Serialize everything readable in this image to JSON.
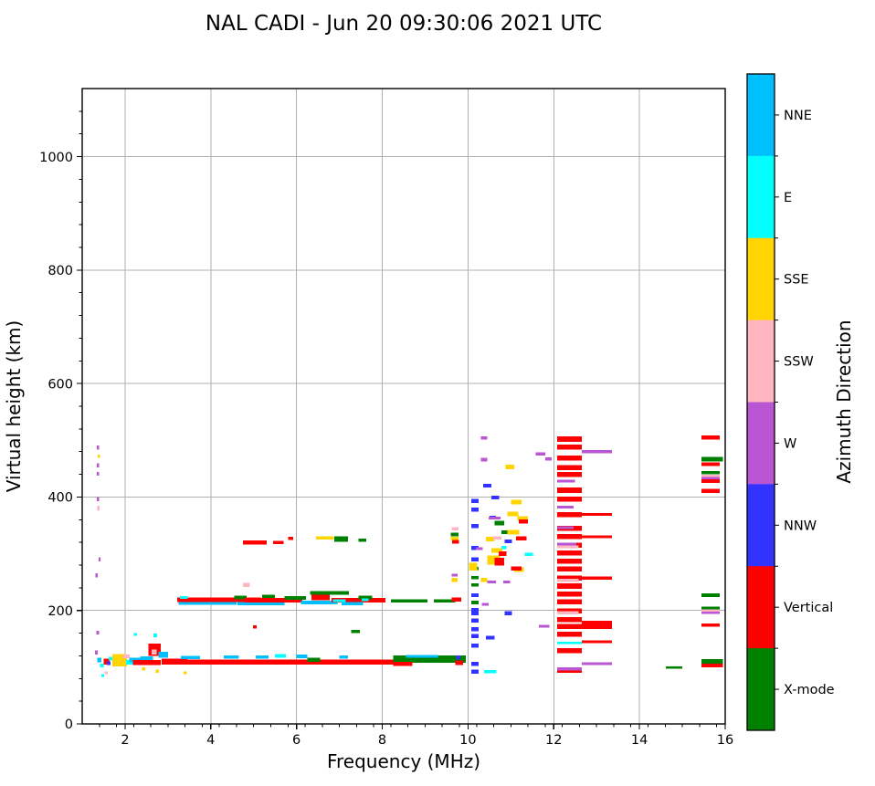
{
  "title": "NAL CADI - Jun 20 09:30:06 2021 UTC",
  "axes": {
    "xlabel": "Frequency (MHz)",
    "ylabel": "Virtual height (km)",
    "xlim": [
      1,
      16
    ],
    "ylim": [
      0,
      1120
    ],
    "xticks": [
      2,
      4,
      6,
      8,
      10,
      12,
      14,
      16
    ],
    "yticks": [
      0,
      200,
      400,
      600,
      800,
      1000
    ],
    "x_minor_step": 0.4,
    "y_minor_step": 40,
    "grid_color": "#b0b0b0",
    "spine_color": "#000000"
  },
  "colorbar": {
    "label": "Azimuth Direction",
    "categories_top_to_bottom": [
      {
        "key": "NNE",
        "label": "NNE",
        "color": "#00BFFF"
      },
      {
        "key": "E",
        "label": "E",
        "color": "#00FFFF"
      },
      {
        "key": "SSE",
        "label": "SSE",
        "color": "#FFD400"
      },
      {
        "key": "SSW",
        "label": "SSW",
        "color": "#FFB6C1"
      },
      {
        "key": "W",
        "label": "W",
        "color": "#BA55D3"
      },
      {
        "key": "NNW",
        "label": "NNW",
        "color": "#3333FF"
      },
      {
        "key": "V",
        "label": "Vertical",
        "color": "#FF0000"
      },
      {
        "key": "X",
        "label": "X-mode",
        "color": "#008000"
      }
    ]
  },
  "chart_data": {
    "type": "scatter",
    "title": "NAL CADI - Jun 20 09:30:06 2021 UTC",
    "xlabel": "Frequency (MHz)",
    "ylabel": "Virtual height (km)",
    "x_units": "MHz",
    "y_units": "km",
    "xlim": [
      1,
      16
    ],
    "ylim": [
      0,
      1120
    ],
    "grid": true,
    "legend_position": "right-colorbar",
    "point_format": [
      "freq_start_MHz",
      "freq_width_MHz",
      "height_center_km",
      "height_thickness_km",
      "azimuth_category"
    ],
    "points": [
      [
        1.3,
        0.06,
        126,
        7,
        "W"
      ],
      [
        1.33,
        0.06,
        161,
        7,
        "W"
      ],
      [
        1.35,
        0.1,
        113,
        8,
        "NNE"
      ],
      [
        1.42,
        0.08,
        103,
        6,
        "E"
      ],
      [
        1.45,
        0.06,
        85,
        5,
        "E"
      ],
      [
        1.52,
        0.08,
        90,
        5,
        "SSW"
      ],
      [
        1.5,
        0.14,
        110,
        10,
        "V"
      ],
      [
        1.58,
        0.08,
        107,
        7,
        "NNW"
      ],
      [
        1.62,
        0.1,
        115,
        6,
        "E"
      ],
      [
        1.7,
        0.34,
        112,
        22,
        "SSE"
      ],
      [
        1.95,
        0.16,
        119,
        7,
        "SSW"
      ],
      [
        2.02,
        0.2,
        109,
        8,
        "E"
      ],
      [
        2.1,
        0.25,
        113,
        8,
        "NNE"
      ],
      [
        2.18,
        0.65,
        108,
        9,
        "V"
      ],
      [
        2.35,
        0.3,
        116,
        6,
        "NNE"
      ],
      [
        2.4,
        0.07,
        97,
        5,
        "SSE"
      ],
      [
        2.2,
        0.08,
        158,
        5,
        "E"
      ],
      [
        2.55,
        0.28,
        131,
        22,
        "V"
      ],
      [
        2.62,
        0.12,
        127,
        9,
        "SSW"
      ],
      [
        2.66,
        0.09,
        156,
        6,
        "E"
      ],
      [
        2.72,
        0.07,
        93,
        5,
        "SSE"
      ],
      [
        2.78,
        0.22,
        122,
        10,
        "NNE"
      ],
      [
        2.85,
        0.6,
        110,
        10,
        "V"
      ],
      [
        3.3,
        0.45,
        117,
        6,
        "NNE"
      ],
      [
        3.37,
        0.07,
        90,
        5,
        "SSE"
      ],
      [
        3.45,
        4.8,
        109,
        9,
        "V"
      ],
      [
        4.3,
        0.35,
        118,
        6,
        "NNE"
      ],
      [
        5.05,
        0.3,
        118,
        6,
        "NNE"
      ],
      [
        5.5,
        0.25,
        120,
        6,
        "E"
      ],
      [
        6.0,
        0.25,
        119,
        6,
        "NNE"
      ],
      [
        6.25,
        0.3,
        113,
        7,
        "X"
      ],
      [
        7.0,
        0.2,
        118,
        6,
        "NNE"
      ],
      [
        8.25,
        1.7,
        114,
        13,
        "X"
      ],
      [
        8.25,
        0.45,
        106,
        7,
        "V"
      ],
      [
        8.55,
        0.75,
        119,
        5,
        "NNE"
      ],
      [
        9.7,
        0.18,
        108,
        8,
        "V"
      ],
      [
        9.72,
        0.1,
        117,
        7,
        "NNW"
      ],
      [
        3.25,
        1.35,
        213,
        6,
        "NNE"
      ],
      [
        3.22,
        1.95,
        219,
        8,
        "V"
      ],
      [
        3.28,
        0.18,
        223,
        5,
        "E"
      ],
      [
        4.55,
        0.28,
        223,
        6,
        "X"
      ],
      [
        4.62,
        1.1,
        212,
        6,
        "NNE"
      ],
      [
        4.78,
        1.35,
        218,
        8,
        "V"
      ],
      [
        5.2,
        0.3,
        225,
        6,
        "X"
      ],
      [
        4.75,
        0.16,
        245,
        8,
        "SSW"
      ],
      [
        4.98,
        0.09,
        171,
        6,
        "V"
      ],
      [
        5.72,
        0.5,
        222,
        7,
        "X"
      ],
      [
        6.1,
        0.85,
        214,
        6,
        "NNE"
      ],
      [
        6.35,
        0.42,
        225,
        14,
        "V"
      ],
      [
        6.32,
        0.9,
        231,
        6,
        "X"
      ],
      [
        6.82,
        1.25,
        218,
        8,
        "V"
      ],
      [
        6.85,
        0.3,
        217,
        5,
        "E"
      ],
      [
        7.45,
        0.32,
        223,
        6,
        "X"
      ],
      [
        7.52,
        0.16,
        219,
        5,
        "E"
      ],
      [
        7.05,
        0.5,
        212,
        5,
        "NNE"
      ],
      [
        8.2,
        0.85,
        217,
        6,
        "X"
      ],
      [
        9.2,
        0.5,
        217,
        6,
        "X"
      ],
      [
        9.62,
        0.22,
        219,
        7,
        "V"
      ],
      [
        7.28,
        0.2,
        163,
        5,
        "X"
      ],
      [
        4.75,
        0.55,
        320,
        7,
        "V"
      ],
      [
        5.45,
        0.25,
        320,
        6,
        "V"
      ],
      [
        5.8,
        0.12,
        327,
        6,
        "V"
      ],
      [
        6.45,
        0.42,
        328,
        6,
        "SSE"
      ],
      [
        6.88,
        0.32,
        326,
        10,
        "X"
      ],
      [
        7.45,
        0.18,
        324,
        6,
        "X"
      ],
      [
        1.34,
        0.05,
        487,
        7,
        "W"
      ],
      [
        1.36,
        0.05,
        472,
        6,
        "SSE"
      ],
      [
        1.34,
        0.05,
        456,
        7,
        "W"
      ],
      [
        1.34,
        0.05,
        441,
        7,
        "W"
      ],
      [
        1.34,
        0.05,
        396,
        7,
        "W"
      ],
      [
        1.35,
        0.06,
        380,
        9,
        "SSW"
      ],
      [
        1.38,
        0.05,
        290,
        7,
        "W"
      ],
      [
        1.31,
        0.05,
        262,
        7,
        "W"
      ],
      [
        9.62,
        0.16,
        344,
        6,
        "SSW"
      ],
      [
        9.6,
        0.18,
        334,
        7,
        "X"
      ],
      [
        9.6,
        0.18,
        327,
        6,
        "SSE"
      ],
      [
        9.63,
        0.16,
        321,
        6,
        "V"
      ],
      [
        9.62,
        0.14,
        262,
        5,
        "W"
      ],
      [
        9.62,
        0.14,
        254,
        7,
        "SSE"
      ],
      [
        10.08,
        0.17,
        92,
        7,
        "NNW"
      ],
      [
        10.08,
        0.17,
        106,
        7,
        "NNW"
      ],
      [
        10.08,
        0.17,
        138,
        7,
        "NNW"
      ],
      [
        10.08,
        0.17,
        155,
        7,
        "NNW"
      ],
      [
        10.08,
        0.17,
        167,
        7,
        "NNW"
      ],
      [
        10.08,
        0.17,
        182,
        7,
        "NNW"
      ],
      [
        10.08,
        0.17,
        195,
        7,
        "NNW"
      ],
      [
        10.08,
        0.17,
        201,
        7,
        "NNW"
      ],
      [
        10.08,
        0.17,
        227,
        7,
        "NNW"
      ],
      [
        10.08,
        0.17,
        290,
        7,
        "NNW"
      ],
      [
        10.08,
        0.17,
        310,
        7,
        "NNW"
      ],
      [
        10.08,
        0.17,
        349,
        7,
        "NNW"
      ],
      [
        10.08,
        0.17,
        378,
        7,
        "NNW"
      ],
      [
        10.08,
        0.17,
        393,
        7,
        "NNW"
      ],
      [
        10.42,
        0.2,
        152,
        7,
        "NNW"
      ],
      [
        10.35,
        0.2,
        420,
        7,
        "NNW"
      ],
      [
        10.5,
        0.15,
        364,
        6,
        "NNW"
      ],
      [
        10.55,
        0.18,
        399,
        7,
        "NNW"
      ],
      [
        10.85,
        0.18,
        322,
        6,
        "NNW"
      ],
      [
        10.85,
        0.18,
        195,
        7,
        "NNW"
      ],
      [
        10.08,
        0.17,
        214,
        6,
        "X"
      ],
      [
        10.08,
        0.17,
        245,
        6,
        "X"
      ],
      [
        10.08,
        0.17,
        258,
        6,
        "X"
      ],
      [
        10.08,
        0.17,
        274,
        6,
        "X"
      ],
      [
        10.02,
        0.2,
        277,
        14,
        "SSE"
      ],
      [
        10.45,
        0.3,
        289,
        16,
        "SSE"
      ],
      [
        10.55,
        0.25,
        306,
        8,
        "SSE"
      ],
      [
        10.9,
        0.3,
        338,
        8,
        "SSE"
      ],
      [
        10.92,
        0.25,
        370,
        8,
        "SSE"
      ],
      [
        11.15,
        0.25,
        362,
        8,
        "SSE"
      ],
      [
        11.0,
        0.25,
        391,
        8,
        "SSE"
      ],
      [
        10.88,
        0.2,
        453,
        8,
        "SSE"
      ],
      [
        11.08,
        0.22,
        272,
        8,
        "SSE"
      ],
      [
        10.42,
        0.2,
        326,
        8,
        "SSE"
      ],
      [
        10.3,
        0.15,
        254,
        7,
        "SSE"
      ],
      [
        10.62,
        0.22,
        286,
        14,
        "V"
      ],
      [
        11.0,
        0.25,
        274,
        7,
        "V"
      ],
      [
        11.12,
        0.25,
        327,
        7,
        "V"
      ],
      [
        11.18,
        0.22,
        357,
        7,
        "V"
      ],
      [
        10.72,
        0.18,
        300,
        8,
        "V"
      ],
      [
        10.62,
        0.22,
        354,
        8,
        "X"
      ],
      [
        10.78,
        0.14,
        338,
        6,
        "X"
      ],
      [
        10.58,
        0.2,
        328,
        6,
        "SSW"
      ],
      [
        10.3,
        0.15,
        504,
        6,
        "W"
      ],
      [
        10.3,
        0.15,
        466,
        6,
        "W"
      ],
      [
        10.18,
        0.16,
        309,
        5,
        "W"
      ],
      [
        10.32,
        0.16,
        211,
        5,
        "W"
      ],
      [
        10.45,
        0.2,
        250,
        5,
        "W"
      ],
      [
        10.82,
        0.16,
        250,
        5,
        "W"
      ],
      [
        11.58,
        0.22,
        476,
        5,
        "W"
      ],
      [
        11.8,
        0.15,
        467,
        5,
        "W"
      ],
      [
        10.48,
        0.28,
        363,
        5,
        "W"
      ],
      [
        10.78,
        0.12,
        311,
        5,
        "E"
      ],
      [
        11.32,
        0.2,
        299,
        6,
        "E"
      ],
      [
        10.38,
        0.28,
        92,
        6,
        "E"
      ],
      [
        12.08,
        0.58,
        502,
        9,
        "V"
      ],
      [
        12.08,
        0.58,
        488,
        9,
        "V"
      ],
      [
        12.08,
        0.58,
        469,
        9,
        "V"
      ],
      [
        12.08,
        0.58,
        452,
        9,
        "V"
      ],
      [
        12.08,
        0.58,
        440,
        9,
        "V"
      ],
      [
        12.08,
        0.58,
        412,
        9,
        "V"
      ],
      [
        12.08,
        0.58,
        396,
        9,
        "V"
      ],
      [
        12.08,
        0.58,
        369,
        9,
        "V"
      ],
      [
        12.08,
        0.58,
        345,
        9,
        "V"
      ],
      [
        12.08,
        0.58,
        330,
        9,
        "V"
      ],
      [
        12.08,
        0.58,
        315,
        9,
        "V"
      ],
      [
        12.08,
        0.58,
        301,
        9,
        "V"
      ],
      [
        12.08,
        0.58,
        287,
        9,
        "V"
      ],
      [
        12.08,
        0.58,
        273,
        9,
        "V"
      ],
      [
        12.08,
        0.58,
        257,
        9,
        "V"
      ],
      [
        12.08,
        0.58,
        243,
        9,
        "V"
      ],
      [
        12.08,
        0.58,
        229,
        9,
        "V"
      ],
      [
        12.08,
        0.58,
        215,
        9,
        "V"
      ],
      [
        12.08,
        0.58,
        199,
        9,
        "V"
      ],
      [
        12.08,
        0.58,
        184,
        9,
        "V"
      ],
      [
        12.08,
        1.28,
        172,
        9,
        "V"
      ],
      [
        12.08,
        0.58,
        158,
        9,
        "V"
      ],
      [
        12.08,
        0.58,
        129,
        9,
        "V"
      ],
      [
        12.08,
        0.58,
        93,
        6,
        "V"
      ],
      [
        12.66,
        0.7,
        369,
        5,
        "V"
      ],
      [
        12.66,
        0.7,
        330,
        5,
        "V"
      ],
      [
        12.66,
        0.7,
        257,
        5,
        "V"
      ],
      [
        12.66,
        0.7,
        179,
        5,
        "V"
      ],
      [
        12.66,
        0.7,
        145,
        5,
        "V"
      ],
      [
        12.08,
        0.58,
        143,
        4,
        "E"
      ],
      [
        12.66,
        0.7,
        480,
        5,
        "W"
      ],
      [
        12.08,
        0.42,
        428,
        5,
        "W"
      ],
      [
        12.08,
        0.38,
        382,
        5,
        "W"
      ],
      [
        12.08,
        0.38,
        346,
        5,
        "W"
      ],
      [
        12.08,
        0.45,
        317,
        5,
        "W"
      ],
      [
        12.66,
        0.7,
        106,
        5,
        "W"
      ],
      [
        12.08,
        0.58,
        97,
        5,
        "W"
      ],
      [
        11.65,
        0.25,
        172,
        5,
        "W"
      ],
      [
        12.08,
        0.5,
        312,
        5,
        "SSW"
      ],
      [
        12.08,
        0.5,
        253,
        5,
        "SSW"
      ],
      [
        12.08,
        0.5,
        196,
        5,
        "SSW"
      ],
      [
        14.62,
        0.38,
        99,
        4,
        "X"
      ],
      [
        15.45,
        0.42,
        505,
        7,
        "V"
      ],
      [
        15.45,
        0.5,
        467,
        8,
        "X"
      ],
      [
        15.45,
        0.42,
        458,
        6,
        "V"
      ],
      [
        15.45,
        0.42,
        443,
        6,
        "X"
      ],
      [
        15.45,
        0.42,
        437,
        4,
        "SSW"
      ],
      [
        15.45,
        0.42,
        433,
        4,
        "W"
      ],
      [
        15.45,
        0.42,
        428,
        6,
        "V"
      ],
      [
        15.45,
        0.42,
        411,
        7,
        "V"
      ],
      [
        15.45,
        0.42,
        227,
        7,
        "X"
      ],
      [
        15.45,
        0.42,
        204,
        6,
        "X"
      ],
      [
        15.45,
        0.42,
        200,
        4,
        "SSW"
      ],
      [
        15.45,
        0.42,
        196,
        4,
        "W"
      ],
      [
        15.45,
        0.42,
        174,
        6,
        "V"
      ],
      [
        15.45,
        0.5,
        110,
        8,
        "X"
      ],
      [
        15.45,
        0.5,
        103,
        7,
        "V"
      ]
    ]
  }
}
